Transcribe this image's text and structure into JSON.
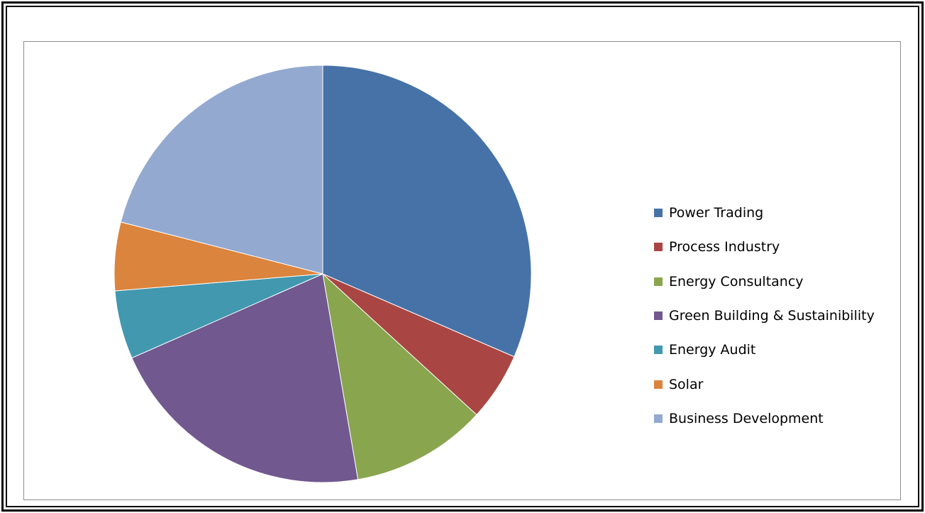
{
  "chart_data": {
    "type": "pie",
    "title": "",
    "categories": [
      "Power Trading",
      "Process Industry",
      "Energy Consultancy",
      "Green Building & Sustainibility",
      "Energy Audit",
      "Solar",
      "Business Development"
    ],
    "values": [
      31.5,
      5.3,
      10.5,
      21.1,
      5.3,
      5.3,
      21.0
    ],
    "unit": "%",
    "colors": [
      "#4672a8",
      "#a94643",
      "#89a54e",
      "#71588f",
      "#4198af",
      "#db843d",
      "#93a9d0"
    ],
    "start_angle": "12 o'clock",
    "direction": "clockwise",
    "legend_position": "right"
  }
}
